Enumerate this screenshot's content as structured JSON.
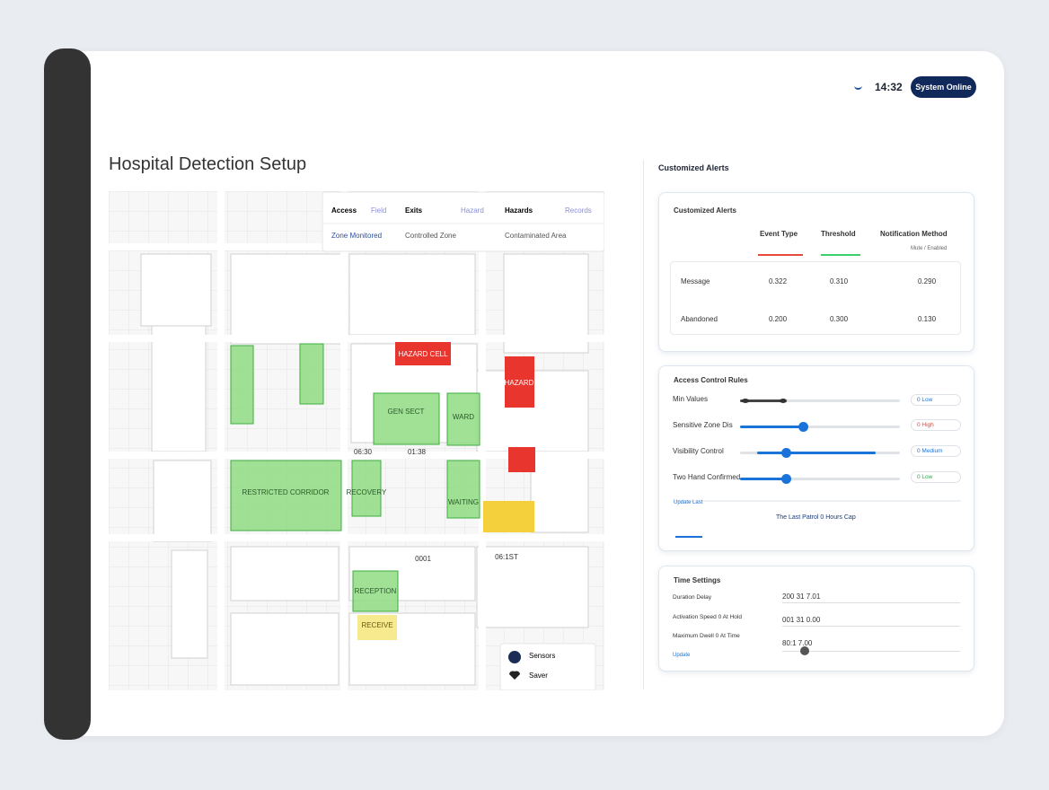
{
  "header": {
    "time": "14:32",
    "status": "System Online"
  },
  "page_title": "Hospital Detection Setup",
  "map": {
    "legend": [
      {
        "title": "Access",
        "tag": "Field",
        "sub": "Zone Monitored"
      },
      {
        "title": "Exits",
        "tag": "Hazard",
        "sub": "Controlled Zone"
      },
      {
        "title": "Hazards",
        "tag": "Records",
        "sub": "Contaminated Area"
      }
    ],
    "zones": [
      "HAZARD CELL",
      "HAZARD",
      "GEN SECT",
      "WARD",
      "RESTRICTED CORRIDOR",
      "RECOVERY",
      "WAITING",
      "RECEPTION",
      "RECEIVE"
    ],
    "times": [
      "06:30",
      "01:38",
      "0001",
      "06:1ST"
    ],
    "sensor_panel": [
      "Sensors",
      "Saver"
    ]
  },
  "alerts": {
    "heading": "Customized Alerts",
    "card_title": "Customized Alerts",
    "columns": [
      "Event Type",
      "Threshold",
      "Notification Method"
    ],
    "method_hint": "Mute / Enabled",
    "rows": [
      [
        "Message",
        "0.322",
        "0.310",
        "0.290"
      ],
      [
        "Abandoned",
        "0.200",
        "0.300",
        "0.130"
      ]
    ]
  },
  "access": {
    "title": "Access Control Rules",
    "rules": [
      {
        "label": "Min Values",
        "pill": "0 Low"
      },
      {
        "label": "Sensitive Zone Dis",
        "pill": "0 High"
      },
      {
        "label": "Visibility Control",
        "pill": "0 Medium"
      },
      {
        "label": "Two Hand Confirmed",
        "pill": "0 Low"
      }
    ],
    "link": "Update Last",
    "note": "The Last Patrol 0 Hours Cap"
  },
  "time_settings": {
    "title": "Time Settings",
    "rows": [
      {
        "label": "Duration Delay",
        "value": "200 31 7.01"
      },
      {
        "label": "Activation Speed 0 At Hold",
        "value": "001 31 0.00"
      },
      {
        "label": "Maximum Dwell 0 At Time",
        "value": "80:1 7.00"
      }
    ],
    "link": "Update"
  }
}
